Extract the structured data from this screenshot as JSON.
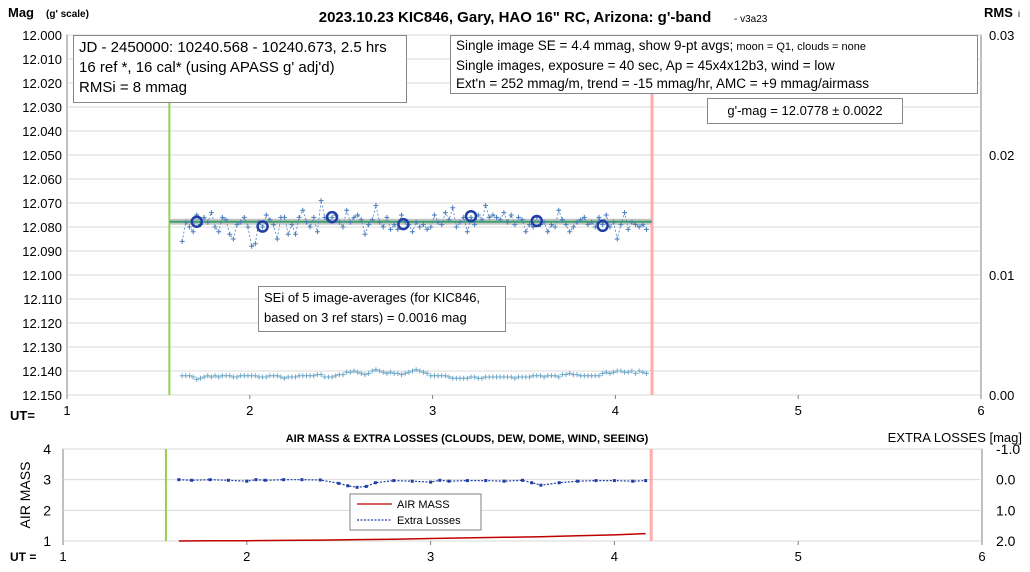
{
  "chart_data": [
    {
      "type": "scatter",
      "title": "2023.10.23 KIC846, Gary, HAO 16\" RC, Arizona: g'-band",
      "title_suffix": "- v3a23",
      "ylabel": "Mag",
      "ylabel_unit": "(g' scale)",
      "y2label": "RMS",
      "y2label_suffix": "i",
      "xlabel": "UT=",
      "xlim": [
        1,
        6
      ],
      "ylim": [
        12.0,
        12.15
      ],
      "y_inverted": true,
      "y2lim": [
        0.0,
        0.03
      ],
      "xticks": [
        "1",
        "2",
        "3",
        "4",
        "5",
        "6"
      ],
      "yticks": [
        "12.000",
        "12.010",
        "12.020",
        "12.030",
        "12.040",
        "12.050",
        "12.060",
        "12.070",
        "12.080",
        "12.090",
        "12.100",
        "12.110",
        "12.120",
        "12.130",
        "12.140",
        "12.150"
      ],
      "y2ticks": [
        "0.03",
        "0.02",
        "0.01",
        "0.00"
      ],
      "grid": "horizontal",
      "start_marker_ut": 1.56,
      "end_marker_ut": 4.2,
      "mean_mag": 12.0778,
      "series": [
        {
          "kind": "single-images",
          "color": "#4a7ebb",
          "x": [
            1.63,
            1.65,
            1.67,
            1.69,
            1.71,
            1.73,
            1.75,
            1.77,
            1.79,
            1.81,
            1.83,
            1.85,
            1.87,
            1.89,
            1.91,
            1.93,
            1.95,
            1.97,
            1.99,
            2.01,
            2.03,
            2.05,
            2.07,
            2.09,
            2.11,
            2.13,
            2.15,
            2.17,
            2.19,
            2.21,
            2.23,
            2.25,
            2.27,
            2.29,
            2.31,
            2.33,
            2.35,
            2.37,
            2.39,
            2.41,
            2.43,
            2.45,
            2.47,
            2.49,
            2.51,
            2.53,
            2.55,
            2.57,
            2.59,
            2.61,
            2.63,
            2.65,
            2.67,
            2.69,
            2.71,
            2.73,
            2.75,
            2.77,
            2.79,
            2.81,
            2.83,
            2.85,
            2.87,
            2.89,
            2.91,
            2.93,
            2.95,
            2.97,
            2.99,
            3.01,
            3.03,
            3.05,
            3.07,
            3.09,
            3.11,
            3.13,
            3.15,
            3.17,
            3.19,
            3.21,
            3.23,
            3.25,
            3.27,
            3.29,
            3.31,
            3.33,
            3.35,
            3.37,
            3.39,
            3.41,
            3.43,
            3.45,
            3.47,
            3.49,
            3.51,
            3.53,
            3.55,
            3.57,
            3.59,
            3.61,
            3.63,
            3.65,
            3.67,
            3.69,
            3.71,
            3.73,
            3.75,
            3.77,
            3.79,
            3.81,
            3.83,
            3.85,
            3.87,
            3.89,
            3.91,
            3.93,
            3.95,
            3.97,
            3.99,
            4.01,
            4.03,
            4.05,
            4.07,
            4.09,
            4.11,
            4.13,
            4.15,
            4.17
          ],
          "y": [
            12.086,
            12.078,
            12.08,
            12.082,
            12.075,
            12.079,
            12.076,
            12.078,
            12.074,
            12.08,
            12.082,
            12.076,
            12.077,
            12.083,
            12.085,
            12.079,
            12.078,
            12.076,
            12.08,
            12.088,
            12.087,
            12.078,
            12.08,
            12.075,
            12.077,
            12.079,
            12.085,
            12.076,
            12.076,
            12.083,
            12.079,
            12.083,
            12.076,
            12.073,
            12.078,
            12.08,
            12.076,
            12.082,
            12.069,
            12.076,
            12.077,
            12.076,
            12.075,
            12.078,
            12.08,
            12.073,
            12.078,
            12.076,
            12.075,
            12.077,
            12.083,
            12.079,
            12.077,
            12.071,
            12.078,
            12.08,
            12.076,
            12.081,
            12.079,
            12.081,
            12.075,
            12.078,
            12.079,
            12.082,
            12.078,
            12.08,
            12.079,
            12.081,
            12.08,
            12.075,
            12.078,
            12.079,
            12.074,
            12.077,
            12.072,
            12.08,
            12.078,
            12.076,
            12.082,
            12.076,
            12.079,
            12.075,
            12.077,
            12.071,
            12.076,
            12.075,
            12.076,
            12.077,
            12.074,
            12.078,
            12.075,
            12.079,
            12.076,
            12.077,
            12.082,
            12.079,
            12.08,
            12.076,
            12.079,
            12.078,
            12.082,
            12.079,
            12.08,
            12.073,
            12.077,
            12.079,
            12.082,
            12.08,
            12.078,
            12.077,
            12.076,
            12.079,
            12.078,
            12.08,
            12.076,
            12.079,
            12.075,
            12.08,
            12.078,
            12.085,
            12.079,
            12.074,
            12.081,
            12.078,
            12.079,
            12.08,
            12.079,
            12.081
          ],
          "rms_x": [
            1.63,
            1.65,
            1.67,
            1.69,
            1.71,
            1.73,
            1.75,
            1.77,
            1.79,
            1.81,
            1.83,
            1.85,
            1.87,
            1.89,
            1.91,
            1.93,
            1.95,
            1.97,
            1.99,
            2.01,
            2.03,
            2.05,
            2.07,
            2.09,
            2.11,
            2.13,
            2.15,
            2.17,
            2.19,
            2.21,
            2.23,
            2.25,
            2.27,
            2.29,
            2.31,
            2.33,
            2.35,
            2.37,
            2.39,
            2.41,
            2.43,
            2.45,
            2.47,
            2.49,
            2.51,
            2.53,
            2.55,
            2.57,
            2.59,
            2.61,
            2.63,
            2.65,
            2.67,
            2.69,
            2.71,
            2.73,
            2.75,
            2.77,
            2.79,
            2.81,
            2.83,
            2.85,
            2.87,
            2.89,
            2.91,
            2.93,
            2.95,
            2.97,
            2.99,
            3.01,
            3.03,
            3.05,
            3.07,
            3.09,
            3.11,
            3.13,
            3.15,
            3.17,
            3.19,
            3.21,
            3.23,
            3.25,
            3.27,
            3.29,
            3.31,
            3.33,
            3.35,
            3.37,
            3.39,
            3.41,
            3.43,
            3.45,
            3.47,
            3.49,
            3.51,
            3.53,
            3.55,
            3.57,
            3.59,
            3.61,
            3.63,
            3.65,
            3.67,
            3.69,
            3.71,
            3.73,
            3.75,
            3.77,
            3.79,
            3.81,
            3.83,
            3.85,
            3.87,
            3.89,
            3.91,
            3.93,
            3.95,
            3.97,
            3.99,
            4.01,
            4.03,
            4.05,
            4.07,
            4.09,
            4.11,
            4.13,
            4.15,
            4.17
          ],
          "rms_y": [
            0.0016,
            0.0016,
            0.0016,
            0.0015,
            0.0013,
            0.0014,
            0.0015,
            0.0016,
            0.0015,
            0.0016,
            0.0015,
            0.0016,
            0.0016,
            0.0016,
            0.0015,
            0.0015,
            0.0016,
            0.0016,
            0.0016,
            0.0016,
            0.0016,
            0.0015,
            0.0015,
            0.0015,
            0.0016,
            0.0016,
            0.0016,
            0.0015,
            0.0014,
            0.0015,
            0.0015,
            0.0015,
            0.0016,
            0.0016,
            0.0016,
            0.0016,
            0.0016,
            0.0017,
            0.0017,
            0.0015,
            0.0015,
            0.0015,
            0.0016,
            0.0017,
            0.0017,
            0.0019,
            0.0019,
            0.002,
            0.0019,
            0.0018,
            0.0017,
            0.0018,
            0.002,
            0.0021,
            0.002,
            0.0019,
            0.0018,
            0.0019,
            0.0018,
            0.0018,
            0.0017,
            0.0018,
            0.0019,
            0.002,
            0.0021,
            0.002,
            0.0019,
            0.0018,
            0.0016,
            0.0016,
            0.0016,
            0.0016,
            0.0016,
            0.0015,
            0.0014,
            0.0014,
            0.0014,
            0.0014,
            0.0014,
            0.0015,
            0.0015,
            0.0014,
            0.0014,
            0.0015,
            0.0015,
            0.0015,
            0.0015,
            0.0015,
            0.0015,
            0.0015,
            0.0015,
            0.0014,
            0.0015,
            0.0015,
            0.0015,
            0.0015,
            0.0016,
            0.0016,
            0.0016,
            0.0015,
            0.0016,
            0.0016,
            0.0016,
            0.0015,
            0.0017,
            0.0017,
            0.0018,
            0.0017,
            0.0017,
            0.0016,
            0.0016,
            0.0016,
            0.0016,
            0.0016,
            0.0016,
            0.0018,
            0.0019,
            0.0018,
            0.0019,
            0.002,
            0.002,
            0.0019,
            0.0019,
            0.002,
            0.0018,
            0.002,
            0.0019,
            0.0018
          ]
        },
        {
          "kind": "9-pt-averages",
          "color": "#1f3fa6",
          "x": [
            1.71,
            2.07,
            2.45,
            2.84,
            3.21,
            3.57,
            3.93
          ],
          "y": [
            12.0778,
            12.0798,
            12.0759,
            12.0788,
            12.0755,
            12.0775,
            12.0795
          ]
        }
      ],
      "annotations": {
        "box1": [
          "JD - 2450000: 10240.568 - 10240.673, 2.5 hrs",
          "16 ref *, 16 cal* (using APASS g' adj'd)",
          "RMSi = 8 mmag"
        ],
        "box2_line1_main": "Single image SE = 4.4 mmag, show  9-pt avgs;",
        "box2_line1_small": " moon = Q1, clouds = none",
        "box2_line2": "Single images, exposure = 40 sec, Ap = 45x4x12b3, wind = low",
        "box2_line3": "Ext'n = 252 mmag/m, trend = -15 mmag/hr, AMC = +9 mmag/airmass",
        "mag_box": "g'-mag = 12.0778 ± 0.0022",
        "sei_box": [
          "SEi of 5 image-averages (for KIC846,",
          "based on 3 ref stars) = 0.0016 mag"
        ]
      }
    },
    {
      "type": "line",
      "title": "AIR MASS & EXTRA LOSSES (CLOUDS, DEW, DOME, WIND, SEEING)",
      "ylabel": "AIR MASS",
      "y2label": "EXTRA LOSSES [mag]",
      "xlabel": "UT =",
      "xlim": [
        1,
        6
      ],
      "ylim": [
        1,
        4
      ],
      "y2lim": [
        2.0,
        -1.0
      ],
      "xticks": [
        "1",
        "2",
        "3",
        "4",
        "5",
        "6"
      ],
      "yticks": [
        "1",
        "2",
        "3",
        "4"
      ],
      "y2ticks": [
        "-1.0",
        "0.0",
        "1.0",
        "2.0"
      ],
      "grid": "horizontal",
      "start_marker_ut": 1.56,
      "end_marker_ut": 4.2,
      "legend_position": "bottom-center",
      "series": [
        {
          "name": "AIR MASS",
          "color": "#c00000",
          "x": [
            1.63,
            1.8,
            2.0,
            2.2,
            2.4,
            2.6,
            2.8,
            3.0,
            3.2,
            3.4,
            3.6,
            3.8,
            4.0,
            4.17
          ],
          "y": [
            1.0,
            1.005,
            1.01,
            1.02,
            1.03,
            1.045,
            1.06,
            1.08,
            1.1,
            1.12,
            1.14,
            1.17,
            1.2,
            1.24
          ]
        },
        {
          "name": "Extra Losses",
          "color": "#1f3fa6",
          "x": [
            1.63,
            1.7,
            1.8,
            1.9,
            2.0,
            2.05,
            2.1,
            2.2,
            2.3,
            2.4,
            2.5,
            2.55,
            2.6,
            2.65,
            2.7,
            2.8,
            2.9,
            3.0,
            3.05,
            3.1,
            3.2,
            3.3,
            3.4,
            3.5,
            3.55,
            3.6,
            3.7,
            3.8,
            3.9,
            4.0,
            4.1,
            4.17
          ],
          "y": [
            0.0,
            0.02,
            0.0,
            0.02,
            0.05,
            0.0,
            0.02,
            0.0,
            0.0,
            0.01,
            0.12,
            0.2,
            0.25,
            0.22,
            0.1,
            0.03,
            0.05,
            0.08,
            0.02,
            0.05,
            0.03,
            0.03,
            0.05,
            0.02,
            0.1,
            0.18,
            0.1,
            0.05,
            0.03,
            0.03,
            0.05,
            0.03
          ]
        }
      ]
    }
  ]
}
